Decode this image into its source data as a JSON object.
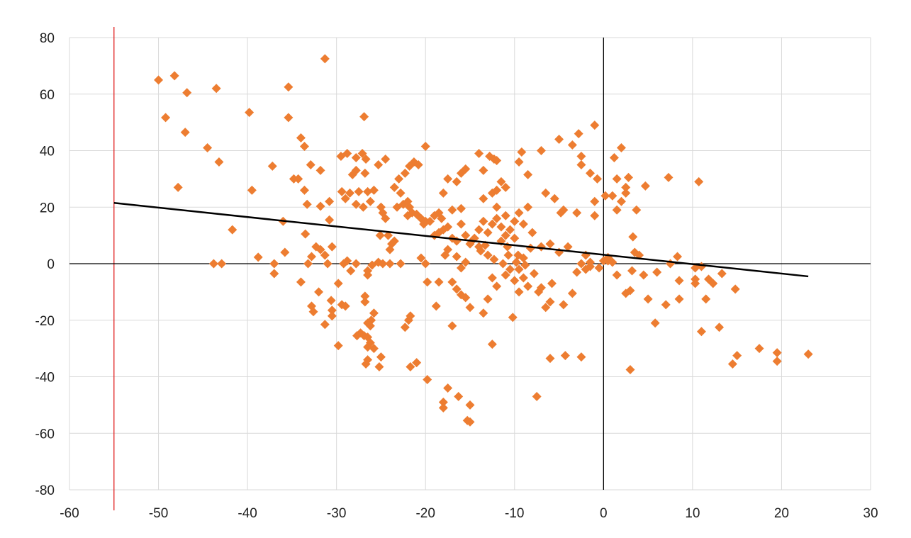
{
  "chart_data": {
    "type": "scatter",
    "title": "",
    "xlabel": "",
    "ylabel": "",
    "xlim": [
      -60,
      30
    ],
    "ylim": [
      -80,
      80
    ],
    "x_ticks": [
      -60,
      -50,
      -40,
      -30,
      -20,
      -10,
      0,
      10,
      20,
      30
    ],
    "y_ticks": [
      -80,
      -60,
      -40,
      -20,
      0,
      20,
      40,
      60,
      80
    ],
    "x_tick_labels": [
      "-60",
      "-50",
      "-40",
      "-30",
      "-20",
      "-10",
      "0",
      "10",
      "20",
      "30"
    ],
    "y_tick_labels": [
      "-80",
      "-60",
      "-40",
      "-20",
      "0",
      "20",
      "40",
      "60",
      "80"
    ],
    "grid": true,
    "reference_lines": [
      {
        "axis": "x",
        "value": -55,
        "color": "#e02020"
      },
      {
        "axis": "x",
        "value": 0,
        "color": "#000000"
      },
      {
        "axis": "y",
        "value": 0,
        "color": "#000000"
      }
    ],
    "trendline": {
      "x": [
        -55,
        23
      ],
      "y": [
        21.5,
        -4.5
      ],
      "color": "#000000"
    },
    "marker_color": "#ed7d31",
    "marker": "diamond",
    "points": [
      [
        -50,
        65
      ],
      [
        -48.2,
        66.5
      ],
      [
        -46.8,
        60.5
      ],
      [
        -49.2,
        51.7
      ],
      [
        -47,
        46.5
      ],
      [
        -44.5,
        41
      ],
      [
        -43.5,
        62
      ],
      [
        -43.2,
        36
      ],
      [
        -47.8,
        27
      ],
      [
        -39.8,
        53.5
      ],
      [
        -35.4,
        62.5
      ],
      [
        -35.4,
        51.7
      ],
      [
        -31.3,
        72.5
      ],
      [
        -34,
        44.5
      ],
      [
        -33.6,
        41.5
      ],
      [
        -37.2,
        34.5
      ],
      [
        -32.9,
        35
      ],
      [
        -31.8,
        33
      ],
      [
        -39.5,
        26
      ],
      [
        -34.3,
        30
      ],
      [
        -33.6,
        26
      ],
      [
        -34.8,
        30
      ],
      [
        -36,
        15
      ],
      [
        -41.7,
        12
      ],
      [
        -33.3,
        21
      ],
      [
        -30.8,
        22
      ],
      [
        -31.8,
        20.3
      ],
      [
        -30.8,
        15.5
      ],
      [
        -29.5,
        38
      ],
      [
        -28.8,
        39
      ],
      [
        -27.8,
        37.5
      ],
      [
        -27.1,
        39
      ],
      [
        -26.7,
        37
      ],
      [
        -26.9,
        52
      ],
      [
        -25.3,
        35
      ],
      [
        -24.5,
        37
      ],
      [
        -29.4,
        25.5
      ],
      [
        -29,
        23
      ],
      [
        -28.5,
        25
      ],
      [
        -27.5,
        25.5
      ],
      [
        -27.8,
        21
      ],
      [
        -27,
        20
      ],
      [
        -26.2,
        22
      ],
      [
        -26.5,
        25.5
      ],
      [
        -25.8,
        26
      ],
      [
        -28.2,
        31.5
      ],
      [
        -26.8,
        32
      ],
      [
        -27.8,
        33
      ],
      [
        -25,
        20
      ],
      [
        -24.8,
        18
      ],
      [
        -24.5,
        16
      ],
      [
        -33.5,
        10.5
      ],
      [
        -32.3,
        6
      ],
      [
        -31.8,
        5
      ],
      [
        -31.3,
        3
      ],
      [
        -30.5,
        6
      ],
      [
        -32.8,
        2.5
      ],
      [
        -33.2,
        0
      ],
      [
        -31,
        0
      ],
      [
        -38.8,
        2.3
      ],
      [
        -35.8,
        4
      ],
      [
        -37,
        0
      ],
      [
        -37,
        -3.5
      ],
      [
        -43.8,
        0
      ],
      [
        -42.9,
        0
      ],
      [
        -34,
        -6.5
      ],
      [
        -32.8,
        -15
      ],
      [
        -32.6,
        -17
      ],
      [
        -32,
        -10
      ],
      [
        -31.3,
        -21.5
      ],
      [
        -30.6,
        -13
      ],
      [
        -30.5,
        -16.5
      ],
      [
        -30.5,
        -18.5
      ],
      [
        -29.8,
        -7
      ],
      [
        -29.4,
        -14.5
      ],
      [
        -29,
        -15
      ],
      [
        -29.2,
        0
      ],
      [
        -28.8,
        1
      ],
      [
        -27.8,
        0
      ],
      [
        -28.4,
        -2.5
      ],
      [
        -29.8,
        -29
      ],
      [
        -27.7,
        -25.5
      ],
      [
        -27.3,
        -24.5
      ],
      [
        -26.9,
        -25.5
      ],
      [
        -26.5,
        -26
      ],
      [
        -26.8,
        -13.5
      ],
      [
        -26.8,
        -11.5
      ],
      [
        -26.5,
        -29.5
      ],
      [
        -26.2,
        -28
      ],
      [
        -25.8,
        -30
      ],
      [
        -26.5,
        -34
      ],
      [
        -26.7,
        -35.5
      ],
      [
        -25.2,
        -36.5
      ],
      [
        -25,
        -33
      ],
      [
        -25.8,
        -17.5
      ],
      [
        -26.1,
        -20
      ],
      [
        -26.5,
        -21
      ],
      [
        -26.2,
        -22
      ],
      [
        -26.5,
        -4
      ],
      [
        -26.5,
        -2.5
      ],
      [
        -26,
        -0.5
      ],
      [
        -25.3,
        0.5
      ],
      [
        -24.8,
        0
      ],
      [
        -25.1,
        10
      ],
      [
        -24.2,
        10
      ],
      [
        -23.8,
        7
      ],
      [
        -23.5,
        8
      ],
      [
        -24,
        5
      ],
      [
        -24,
        0
      ],
      [
        -22.8,
        0
      ],
      [
        -22.3,
        -22.5
      ],
      [
        -21.9,
        -20
      ],
      [
        -21.7,
        -18.5
      ],
      [
        -21.7,
        -36.5
      ],
      [
        -21,
        -35
      ],
      [
        -23.2,
        20
      ],
      [
        -22.5,
        21
      ],
      [
        -21.8,
        20
      ],
      [
        -21.5,
        18
      ],
      [
        -21,
        17.5
      ],
      [
        -20.5,
        16
      ],
      [
        -20.2,
        14
      ],
      [
        -19.5,
        15
      ],
      [
        -19,
        17
      ],
      [
        -18.5,
        18
      ],
      [
        -18.2,
        16
      ],
      [
        -20,
        15
      ],
      [
        -22,
        17
      ],
      [
        -22.8,
        25
      ],
      [
        -23.5,
        27
      ],
      [
        -23,
        30
      ],
      [
        -22.3,
        32
      ],
      [
        -21.8,
        34.5
      ],
      [
        -21.3,
        36
      ],
      [
        -20.8,
        35
      ],
      [
        -22,
        22
      ],
      [
        -20,
        41.5
      ],
      [
        -17.5,
        30
      ],
      [
        -16.5,
        29
      ],
      [
        -16,
        32
      ],
      [
        -15.5,
        33.5
      ],
      [
        -14,
        39
      ],
      [
        -13.5,
        33
      ],
      [
        -18,
        25
      ],
      [
        -17,
        19
      ],
      [
        -16,
        19.5
      ],
      [
        -19,
        10
      ],
      [
        -18.5,
        11
      ],
      [
        -18,
        12
      ],
      [
        -17.5,
        13
      ],
      [
        -17,
        9
      ],
      [
        -16.5,
        8
      ],
      [
        -16,
        14
      ],
      [
        -15.5,
        10
      ],
      [
        -15,
        7
      ],
      [
        -14.5,
        9
      ],
      [
        -14,
        12
      ],
      [
        -13.5,
        15
      ],
      [
        -13,
        11
      ],
      [
        -12.5,
        14
      ],
      [
        -12,
        16
      ],
      [
        -11.5,
        13
      ],
      [
        -11,
        10
      ],
      [
        -10.5,
        12
      ],
      [
        -10,
        15
      ],
      [
        -9.5,
        18
      ],
      [
        -9,
        14
      ],
      [
        -8.5,
        20
      ],
      [
        -8,
        11
      ],
      [
        -13.5,
        23
      ],
      [
        -12.5,
        25
      ],
      [
        -12,
        26
      ],
      [
        -11.5,
        29
      ],
      [
        -11,
        27
      ],
      [
        -12.8,
        38
      ],
      [
        -12.3,
        37
      ],
      [
        -12,
        36.5
      ],
      [
        -9.5,
        36
      ],
      [
        -9.2,
        39.5
      ],
      [
        -7,
        40
      ],
      [
        -8.5,
        31.5
      ],
      [
        -6.5,
        25
      ],
      [
        -5.5,
        23
      ],
      [
        -4.8,
        18
      ],
      [
        -4.5,
        19
      ],
      [
        -3,
        18
      ],
      [
        -5,
        44
      ],
      [
        -3.5,
        42
      ],
      [
        -2.8,
        46
      ],
      [
        -2.5,
        38
      ],
      [
        -2.5,
        35
      ],
      [
        -1.5,
        32
      ],
      [
        -1,
        49
      ],
      [
        -0.7,
        30
      ],
      [
        -1,
        22
      ],
      [
        -1,
        17
      ],
      [
        0.2,
        24
      ],
      [
        1,
        24
      ],
      [
        1.5,
        30
      ],
      [
        2,
        41
      ],
      [
        2.5,
        25
      ],
      [
        1.2,
        37.5
      ],
      [
        2.8,
        30.5
      ],
      [
        3.7,
        19
      ],
      [
        4.7,
        27.5
      ],
      [
        7.3,
        30.5
      ],
      [
        10.7,
        29
      ],
      [
        1.5,
        19
      ],
      [
        2,
        22
      ],
      [
        2.5,
        27
      ],
      [
        -20.5,
        2
      ],
      [
        -20,
        0
      ],
      [
        -19.8,
        -6.5
      ],
      [
        -18.5,
        -6.5
      ],
      [
        -18.8,
        -15
      ],
      [
        -17.8,
        3
      ],
      [
        -17.5,
        5
      ],
      [
        -16.5,
        2.5
      ],
      [
        -16,
        -1.5
      ],
      [
        -15.5,
        0.5
      ],
      [
        -17,
        -6.5
      ],
      [
        -16.5,
        -9
      ],
      [
        -16,
        -11
      ],
      [
        -15.5,
        -12
      ],
      [
        -15,
        -15.5
      ],
      [
        -17,
        -22
      ],
      [
        -19.8,
        -41
      ],
      [
        -17.5,
        -44
      ],
      [
        -18,
        -49
      ],
      [
        -18,
        -51
      ],
      [
        -16.3,
        -47
      ],
      [
        -15,
        -50
      ],
      [
        -15.3,
        -55.5
      ],
      [
        -15,
        -56
      ],
      [
        -13.5,
        -17.5
      ],
      [
        -13,
        -12.5
      ],
      [
        -12.5,
        -5
      ],
      [
        -12.5,
        -28.5
      ],
      [
        -12,
        -8
      ],
      [
        -11,
        -4
      ],
      [
        -10.5,
        -2
      ],
      [
        -10,
        -6
      ],
      [
        -9.5,
        -10
      ],
      [
        -10.2,
        -19
      ],
      [
        -9.5,
        -2
      ],
      [
        -9,
        -5
      ],
      [
        -8.5,
        -8
      ],
      [
        -7.8,
        -3.5
      ],
      [
        -7.3,
        -10
      ],
      [
        -7,
        -8.5
      ],
      [
        -6.5,
        -15.5
      ],
      [
        -6,
        -13.5
      ],
      [
        -5.8,
        -7
      ],
      [
        -6,
        -33.5
      ],
      [
        -7.5,
        -47
      ],
      [
        -4.3,
        -32.5
      ],
      [
        -2.5,
        -33
      ],
      [
        -4.5,
        -14.5
      ],
      [
        -3.5,
        -10.5
      ],
      [
        -3,
        -3
      ],
      [
        -2.5,
        0
      ],
      [
        -2,
        -2
      ],
      [
        -1.5,
        0.5
      ],
      [
        -0.5,
        -1.5
      ],
      [
        0,
        1
      ],
      [
        0.5,
        1
      ],
      [
        1,
        0.5
      ],
      [
        1.5,
        -4
      ],
      [
        2.5,
        -10.5
      ],
      [
        3,
        -9.5
      ],
      [
        3.2,
        -2.5
      ],
      [
        3.3,
        9.5
      ],
      [
        3.5,
        4
      ],
      [
        4,
        3
      ],
      [
        3,
        -37.5
      ],
      [
        4.5,
        -4
      ],
      [
        5,
        -12.5
      ],
      [
        5.8,
        -21
      ],
      [
        6,
        -3
      ],
      [
        7,
        -14.5
      ],
      [
        7.5,
        0
      ],
      [
        8.3,
        2.5
      ],
      [
        8.5,
        -6
      ],
      [
        8.5,
        -12.5
      ],
      [
        10.3,
        -1.5
      ],
      [
        10.3,
        -5.5
      ],
      [
        10.3,
        -7
      ],
      [
        11,
        -1
      ],
      [
        11,
        -24
      ],
      [
        11.5,
        -12.5
      ],
      [
        11.8,
        -5.5
      ],
      [
        12.3,
        -7
      ],
      [
        13,
        -22.5
      ],
      [
        13.3,
        -3.5
      ],
      [
        14.5,
        -35.5
      ],
      [
        14.8,
        -9
      ],
      [
        15,
        -32.5
      ],
      [
        17.5,
        -30
      ],
      [
        19.5,
        -31.5
      ],
      [
        19.5,
        -34.5
      ],
      [
        23,
        -32
      ],
      [
        -14,
        6
      ],
      [
        -13,
        3
      ],
      [
        -11.5,
        8
      ],
      [
        -10.8,
        6
      ],
      [
        -10,
        9
      ],
      [
        -9.6,
        3
      ],
      [
        -9,
        2
      ],
      [
        -8.2,
        5.5
      ],
      [
        -7,
        6
      ],
      [
        -6,
        7
      ],
      [
        -5,
        4
      ],
      [
        -4,
        6
      ],
      [
        -2,
        3
      ],
      [
        -1.5,
        -1
      ],
      [
        0.5,
        2.2
      ],
      [
        -13.8,
        4.5
      ],
      [
        -12,
        20
      ],
      [
        -11,
        17
      ],
      [
        -14.8,
        8
      ],
      [
        -13.3,
        6.5
      ],
      [
        -12.3,
        1.5
      ],
      [
        -11.3,
        0
      ],
      [
        -10.7,
        3
      ],
      [
        -9.8,
        0.5
      ],
      [
        -8.8,
        -0.5
      ]
    ]
  }
}
